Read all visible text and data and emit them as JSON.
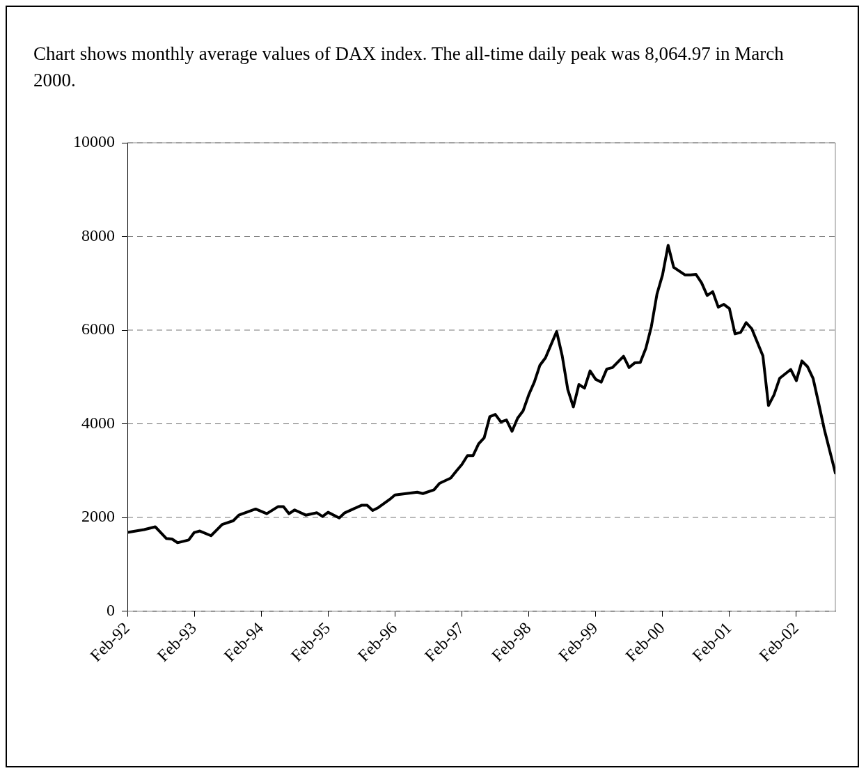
{
  "chart_data": {
    "type": "line",
    "title": "Chart shows monthly average values of DAX index.  The all-time daily peak was 8,064.97 in March 2000.",
    "x": [
      "1992-02",
      "1992-05",
      "1992-07",
      "1992-09",
      "1992-10",
      "1992-11",
      "1993-01",
      "1993-02",
      "1993-03",
      "1993-05",
      "1993-07",
      "1993-09",
      "1993-10",
      "1994-01",
      "1994-03",
      "1994-05",
      "1994-06",
      "1994-07",
      "1994-08",
      "1994-10",
      "1994-12",
      "1995-01",
      "1995-02",
      "1995-04",
      "1995-05",
      "1995-08",
      "1995-09",
      "1995-10",
      "1995-11",
      "1996-01",
      "1996-02",
      "1996-04",
      "1996-06",
      "1996-07",
      "1996-09",
      "1996-10",
      "1996-12",
      "1997-01",
      "1997-02",
      "1997-03",
      "1997-04",
      "1997-05",
      "1997-06",
      "1997-07",
      "1997-08",
      "1997-09",
      "1997-10",
      "1997-11",
      "1997-12",
      "1998-01",
      "1998-02",
      "1998-03",
      "1998-04",
      "1998-05",
      "1998-07",
      "1998-08",
      "1998-09",
      "1998-10",
      "1998-11",
      "1998-12",
      "1999-01",
      "1999-02",
      "1999-03",
      "1999-04",
      "1999-05",
      "1999-07",
      "1999-08",
      "1999-09",
      "1999-10",
      "1999-11",
      "1999-12",
      "2000-01",
      "2000-02",
      "2000-03",
      "2000-04",
      "2000-06",
      "2000-07",
      "2000-08",
      "2000-09",
      "2000-10",
      "2000-11",
      "2000-12",
      "2001-01",
      "2001-02",
      "2001-03",
      "2001-04",
      "2001-05",
      "2001-06",
      "2001-08",
      "2001-09",
      "2001-10",
      "2001-11",
      "2002-01",
      "2002-02",
      "2002-03",
      "2002-04",
      "2002-05",
      "2002-06",
      "2002-07",
      "2002-09"
    ],
    "series": [
      {
        "color": "#000000",
        "values": [
          1680,
          1740,
          1800,
          1550,
          1540,
          1460,
          1520,
          1680,
          1710,
          1610,
          1850,
          1930,
          2050,
          2180,
          2080,
          2230,
          2230,
          2080,
          2160,
          2050,
          2100,
          2020,
          2110,
          1990,
          2100,
          2260,
          2260,
          2150,
          2210,
          2380,
          2480,
          2510,
          2540,
          2510,
          2590,
          2730,
          2840,
          2990,
          3130,
          3320,
          3320,
          3570,
          3700,
          4150,
          4200,
          4040,
          4080,
          3840,
          4120,
          4280,
          4620,
          4890,
          5250,
          5410,
          5970,
          5450,
          4730,
          4360,
          4840,
          4760,
          5130,
          4950,
          4890,
          5170,
          5200,
          5440,
          5200,
          5300,
          5310,
          5610,
          6080,
          6770,
          7180,
          7810,
          7340,
          7180,
          7180,
          7190,
          7010,
          6740,
          6820,
          6490,
          6550,
          6460,
          5920,
          5950,
          6160,
          6030,
          5450,
          4390,
          4620,
          4970,
          5160,
          4920,
          5340,
          5220,
          4970,
          4440,
          3890,
          2950
        ]
      }
    ],
    "xlim": [
      "1992-02",
      "2002-09"
    ],
    "xticks": [
      {
        "value": "1992-02",
        "label": "Feb-92"
      },
      {
        "value": "1993-02",
        "label": "Feb-93"
      },
      {
        "value": "1994-02",
        "label": "Feb-94"
      },
      {
        "value": "1995-02",
        "label": "Feb-95"
      },
      {
        "value": "1996-02",
        "label": "Feb-96"
      },
      {
        "value": "1997-02",
        "label": "Feb-97"
      },
      {
        "value": "1998-02",
        "label": "Feb-98"
      },
      {
        "value": "1999-02",
        "label": "Feb-99"
      },
      {
        "value": "2000-02",
        "label": "Feb-00"
      },
      {
        "value": "2001-02",
        "label": "Feb-01"
      },
      {
        "value": "2002-02",
        "label": "Feb-02"
      }
    ],
    "ylim": [
      0,
      10000
    ],
    "yticks": [
      0,
      2000,
      4000,
      6000,
      8000,
      10000
    ],
    "grid": "y",
    "legend": false,
    "marker": "none",
    "line_style": "solid"
  }
}
